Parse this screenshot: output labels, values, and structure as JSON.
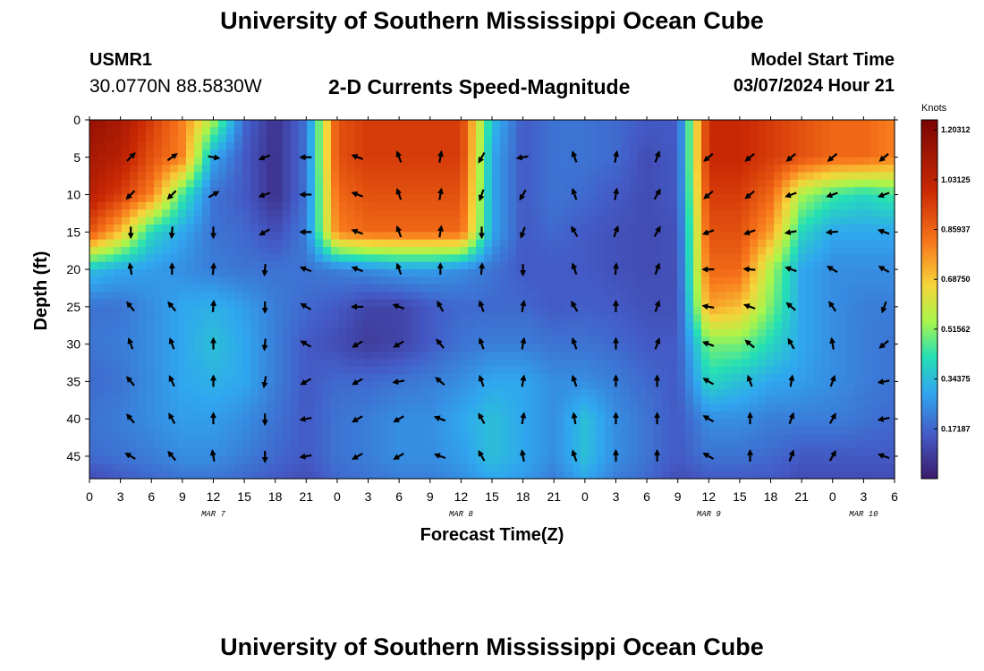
{
  "page": {
    "title": "University of Southern Mississippi Ocean Cube",
    "footer_title": "University of Southern Mississippi Ocean Cube"
  },
  "station": {
    "id": "USMR1",
    "coords": "30.0770N  88.5830W"
  },
  "product": "2-D Currents Speed-Magnitude",
  "model_start": {
    "label": "Model Start Time",
    "value": "03/07/2024 Hour 21"
  },
  "chart_data": {
    "type": "heatmap",
    "title": "2-D Currents Speed-Magnitude",
    "xlabel": "Forecast Time(Z)",
    "ylabel": "Depth (ft)",
    "x_range_hours": [
      0,
      78
    ],
    "ylim": [
      0,
      48
    ],
    "y_inverted": true,
    "x_ticks": [
      {
        "h": 0,
        "label": "0"
      },
      {
        "h": 3,
        "label": "3"
      },
      {
        "h": 6,
        "label": "6"
      },
      {
        "h": 9,
        "label": "9"
      },
      {
        "h": 12,
        "label": "12"
      },
      {
        "h": 15,
        "label": "15"
      },
      {
        "h": 18,
        "label": "18"
      },
      {
        "h": 21,
        "label": "21"
      },
      {
        "h": 24,
        "label": "0"
      },
      {
        "h": 27,
        "label": "3"
      },
      {
        "h": 30,
        "label": "6"
      },
      {
        "h": 33,
        "label": "9"
      },
      {
        "h": 36,
        "label": "12"
      },
      {
        "h": 39,
        "label": "15"
      },
      {
        "h": 42,
        "label": "18"
      },
      {
        "h": 45,
        "label": "21"
      },
      {
        "h": 48,
        "label": "0"
      },
      {
        "h": 51,
        "label": "3"
      },
      {
        "h": 54,
        "label": "6"
      },
      {
        "h": 57,
        "label": "9"
      },
      {
        "h": 60,
        "label": "12"
      },
      {
        "h": 63,
        "label": "15"
      },
      {
        "h": 66,
        "label": "18"
      },
      {
        "h": 69,
        "label": "21"
      },
      {
        "h": 72,
        "label": "0"
      },
      {
        "h": 75,
        "label": "3"
      },
      {
        "h": 78,
        "label": "6"
      }
    ],
    "date_labels": [
      {
        "h": 12,
        "label": "MAR 7"
      },
      {
        "h": 36,
        "label": "MAR 8"
      },
      {
        "h": 60,
        "label": "MAR 9"
      },
      {
        "h": 75,
        "label": "MAR 10"
      }
    ],
    "y_ticks": [
      0,
      5,
      10,
      15,
      20,
      25,
      30,
      35,
      40,
      45
    ],
    "colorbar": {
      "label": "Knots",
      "min": 0,
      "max": 1.2375,
      "ticks": [
        "1.20312",
        "1.03125",
        "0.85937",
        "0.68750",
        "0.51562",
        "0.34375",
        "0.17187"
      ],
      "tick_values": [
        1.203125,
        1.03125,
        0.859375,
        0.6875,
        0.515625,
        0.34375,
        0.171875
      ]
    },
    "speed_grid": {
      "times": [
        0,
        3,
        6,
        9,
        12,
        15,
        18,
        21,
        24,
        27,
        30,
        33,
        36,
        39,
        42,
        45,
        48,
        51,
        54,
        57,
        60,
        63,
        66,
        69,
        72,
        75,
        78
      ],
      "depths": [
        0,
        5,
        10,
        15,
        20,
        25,
        30,
        35,
        40,
        45,
        48
      ],
      "values": [
        [
          1.15,
          1.1,
          0.95,
          0.8,
          0.55,
          0.18,
          0.05,
          0.2,
          0.9,
          0.95,
          0.95,
          0.95,
          0.95,
          0.35,
          0.15,
          0.2,
          0.2,
          0.18,
          0.15,
          0.15,
          1.0,
          1.0,
          0.95,
          0.9,
          0.85,
          0.85,
          0.8
        ],
        [
          1.1,
          1.05,
          0.9,
          0.8,
          0.3,
          0.15,
          0.05,
          0.2,
          0.9,
          0.95,
          0.95,
          0.95,
          0.95,
          0.3,
          0.15,
          0.2,
          0.2,
          0.18,
          0.12,
          0.15,
          1.0,
          1.0,
          0.95,
          0.9,
          0.85,
          0.85,
          0.8
        ],
        [
          1.05,
          0.95,
          0.8,
          0.45,
          0.2,
          0.15,
          0.05,
          0.2,
          0.85,
          0.9,
          0.9,
          0.9,
          0.9,
          0.3,
          0.15,
          0.2,
          0.18,
          0.15,
          0.12,
          0.15,
          0.95,
          0.95,
          0.85,
          0.55,
          0.45,
          0.4,
          0.45
        ],
        [
          0.9,
          0.7,
          0.4,
          0.3,
          0.2,
          0.18,
          0.12,
          0.22,
          0.8,
          0.85,
          0.85,
          0.85,
          0.85,
          0.3,
          0.15,
          0.18,
          0.15,
          0.13,
          0.12,
          0.13,
          0.9,
          0.9,
          0.75,
          0.4,
          0.3,
          0.3,
          0.3
        ],
        [
          0.35,
          0.3,
          0.28,
          0.25,
          0.22,
          0.2,
          0.2,
          0.2,
          0.22,
          0.25,
          0.28,
          0.28,
          0.25,
          0.2,
          0.15,
          0.15,
          0.15,
          0.13,
          0.12,
          0.13,
          0.85,
          0.85,
          0.55,
          0.3,
          0.25,
          0.25,
          0.25
        ],
        [
          0.2,
          0.2,
          0.25,
          0.3,
          0.32,
          0.28,
          0.22,
          0.18,
          0.15,
          0.1,
          0.1,
          0.15,
          0.18,
          0.18,
          0.18,
          0.15,
          0.16,
          0.15,
          0.13,
          0.13,
          0.75,
          0.7,
          0.5,
          0.3,
          0.25,
          0.22,
          0.22
        ],
        [
          0.2,
          0.22,
          0.25,
          0.3,
          0.35,
          0.3,
          0.22,
          0.15,
          0.12,
          0.08,
          0.1,
          0.15,
          0.2,
          0.22,
          0.22,
          0.2,
          0.2,
          0.18,
          0.15,
          0.15,
          0.5,
          0.5,
          0.4,
          0.3,
          0.25,
          0.22,
          0.2
        ],
        [
          0.18,
          0.2,
          0.25,
          0.3,
          0.32,
          0.3,
          0.22,
          0.15,
          0.18,
          0.18,
          0.2,
          0.22,
          0.25,
          0.3,
          0.3,
          0.25,
          0.25,
          0.22,
          0.18,
          0.15,
          0.4,
          0.35,
          0.3,
          0.28,
          0.25,
          0.22,
          0.2
        ],
        [
          0.2,
          0.22,
          0.25,
          0.28,
          0.28,
          0.25,
          0.2,
          0.15,
          0.2,
          0.22,
          0.25,
          0.25,
          0.3,
          0.35,
          0.3,
          0.25,
          0.35,
          0.25,
          0.2,
          0.15,
          0.25,
          0.25,
          0.22,
          0.22,
          0.22,
          0.2,
          0.18
        ],
        [
          0.18,
          0.2,
          0.22,
          0.25,
          0.25,
          0.22,
          0.18,
          0.15,
          0.2,
          0.22,
          0.25,
          0.25,
          0.28,
          0.35,
          0.3,
          0.25,
          0.35,
          0.25,
          0.2,
          0.15,
          0.2,
          0.2,
          0.18,
          0.15,
          0.15,
          0.15,
          0.15
        ],
        [
          0.12,
          0.15,
          0.18,
          0.2,
          0.2,
          0.18,
          0.15,
          0.12,
          0.18,
          0.2,
          0.22,
          0.22,
          0.25,
          0.3,
          0.28,
          0.22,
          0.3,
          0.22,
          0.18,
          0.12,
          0.15,
          0.15,
          0.15,
          0.12,
          0.12,
          0.12,
          0.12
        ]
      ]
    },
    "vector_grid": {
      "times": [
        4,
        8,
        12,
        17,
        21,
        26,
        30,
        34,
        38,
        42,
        47,
        51,
        55,
        60,
        64,
        68,
        72,
        77
      ],
      "depths": [
        5,
        10,
        15,
        20,
        25,
        30,
        35,
        40,
        45
      ],
      "directions_deg": [
        [
          315,
          325,
          10,
          160,
          180,
          200,
          250,
          280,
          120,
          170,
          250,
          280,
          290,
          140,
          140,
          140,
          140,
          140
        ],
        [
          135,
          135,
          330,
          160,
          180,
          200,
          250,
          280,
          110,
          120,
          250,
          280,
          300,
          140,
          140,
          160,
          160,
          160
        ],
        [
          90,
          95,
          90,
          150,
          180,
          200,
          250,
          280,
          90,
          110,
          240,
          290,
          300,
          160,
          160,
          170,
          175,
          200
        ],
        [
          260,
          270,
          275,
          95,
          200,
          200,
          250,
          270,
          275,
          90,
          250,
          275,
          290,
          180,
          185,
          200,
          210,
          210
        ],
        [
          230,
          230,
          275,
          90,
          210,
          180,
          200,
          240,
          250,
          280,
          240,
          270,
          290,
          190,
          200,
          220,
          235,
          110
        ],
        [
          250,
          250,
          270,
          95,
          210,
          150,
          150,
          230,
          250,
          280,
          250,
          270,
          290,
          200,
          220,
          240,
          260,
          140
        ],
        [
          230,
          245,
          270,
          100,
          150,
          150,
          170,
          220,
          250,
          280,
          250,
          270,
          270,
          210,
          250,
          280,
          290,
          170
        ],
        [
          230,
          240,
          270,
          90,
          170,
          150,
          150,
          200,
          240,
          280,
          260,
          270,
          270,
          210,
          270,
          290,
          300,
          170
        ],
        [
          210,
          230,
          260,
          90,
          170,
          150,
          150,
          200,
          240,
          260,
          250,
          270,
          270,
          210,
          270,
          290,
          300,
          200
        ]
      ]
    }
  }
}
